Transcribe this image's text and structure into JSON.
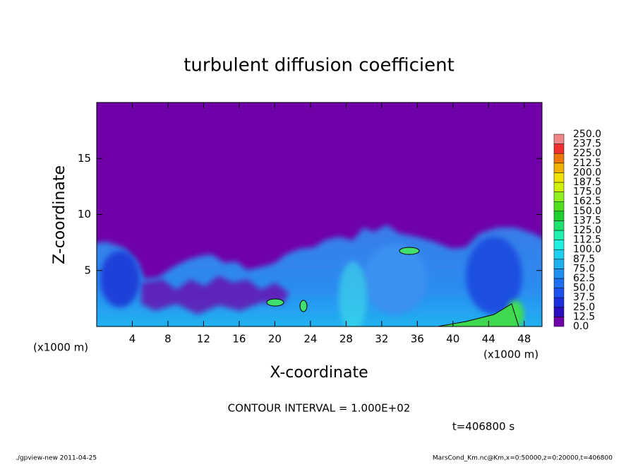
{
  "chart_data": {
    "type": "heatmap",
    "title": "turbulent diffusion coefficient",
    "xlabel": "X-coordinate",
    "ylabel": "Z-coordinate",
    "xunit": "(x1000 m)",
    "yunit": "(x1000 m)",
    "xlim": [
      0,
      50
    ],
    "ylim": [
      0,
      20
    ],
    "xticks": [
      4,
      8,
      12,
      16,
      20,
      24,
      28,
      32,
      36,
      40,
      44,
      48
    ],
    "yticks": [
      5,
      10,
      15
    ],
    "colorbar": {
      "levels": [
        {
          "value": 0,
          "label": "0.0"
        },
        {
          "value": 12.5,
          "label": "12.5"
        },
        {
          "value": 25,
          "label": "25.0"
        },
        {
          "value": 37.5,
          "label": "37.5"
        },
        {
          "value": 50,
          "label": "50.0"
        },
        {
          "value": 62.5,
          "label": "62.5"
        },
        {
          "value": 75,
          "label": "75.0"
        },
        {
          "value": 87.5,
          "label": "87.5"
        },
        {
          "value": 100,
          "label": "100.0"
        },
        {
          "value": 112.5,
          "label": "112.5"
        },
        {
          "value": 125,
          "label": "125.0"
        },
        {
          "value": 137.5,
          "label": "137.5"
        },
        {
          "value": 150,
          "label": "150.0"
        },
        {
          "value": 162.5,
          "label": "162.5"
        },
        {
          "value": 175,
          "label": "175.0"
        },
        {
          "value": 187.5,
          "label": "187.5"
        },
        {
          "value": 200,
          "label": "200.0"
        },
        {
          "value": 212.5,
          "label": "212.5"
        },
        {
          "value": 225,
          "label": "225.0"
        },
        {
          "value": 237.5,
          "label": "237.5"
        },
        {
          "value": 250,
          "label": "250.0"
        }
      ],
      "colors": [
        "#7000a8",
        "#2a10c0",
        "#1c30e0",
        "#1c50f0",
        "#1e70f0",
        "#2090f0",
        "#20b0f0",
        "#20d0f0",
        "#20f0e0",
        "#20f0b0",
        "#20e070",
        "#20d030",
        "#50e020",
        "#90f020",
        "#d0f000",
        "#f0e000",
        "#f0b000",
        "#f07800",
        "#f03030",
        "#f08888"
      ]
    },
    "annotations": {
      "contour_interval": "CONTOUR INTERVAL = 1.000E+02",
      "time": "t=406800 s"
    },
    "footer_left": "./gpview-new   2011-04-25",
    "footer_right": "MarsCond_Km.nc@Km,x=0:50000,z=0:20000,t=406800"
  }
}
